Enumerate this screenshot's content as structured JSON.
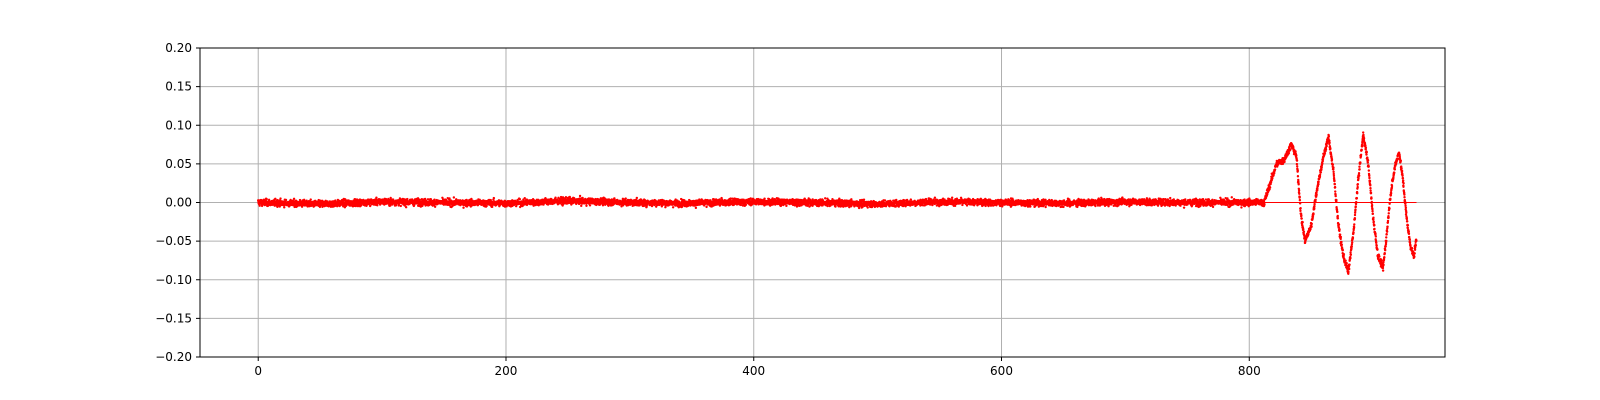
{
  "chart_data": {
    "type": "scatter",
    "title": "",
    "xlabel": "",
    "ylabel": "",
    "xlim": [
      -47,
      958
    ],
    "ylim": [
      -0.2,
      0.2
    ],
    "x_ticks": [
      0,
      200,
      400,
      600,
      800
    ],
    "x_tick_labels": [
      "0",
      "200",
      "400",
      "600",
      "800"
    ],
    "y_ticks": [
      -0.2,
      -0.15,
      -0.1,
      -0.05,
      0.0,
      0.05,
      0.1,
      0.15,
      0.2
    ],
    "y_tick_labels": [
      "−0.20",
      "−0.15",
      "−0.10",
      "−0.05",
      "0.00",
      "0.05",
      "0.10",
      "0.15",
      "0.20"
    ],
    "grid": true,
    "legend": "none",
    "colors": {
      "series": "#ff0000",
      "grid": "#b0b0b0",
      "axes": "#000000"
    },
    "series": [
      {
        "points": [
          [
            0,
            0.0
          ],
          [
            50,
            -0.002
          ],
          [
            100,
            0.001
          ],
          [
            150,
            0.0
          ],
          [
            200,
            -0.001
          ],
          [
            250,
            0.002
          ],
          [
            300,
            0.0
          ],
          [
            350,
            -0.001
          ],
          [
            400,
            0.001
          ],
          [
            450,
            0.0
          ],
          [
            500,
            -0.002
          ],
          [
            550,
            0.001
          ],
          [
            600,
            0.0
          ],
          [
            650,
            -0.001
          ],
          [
            700,
            0.001
          ],
          [
            750,
            0.0
          ],
          [
            800,
            0.0
          ],
          [
            812,
            0.0
          ],
          [
            818,
            0.03
          ],
          [
            822,
            0.05
          ],
          [
            828,
            0.055
          ],
          [
            834,
            0.075
          ],
          [
            838,
            0.06
          ],
          [
            842,
            -0.02
          ],
          [
            845,
            -0.05
          ],
          [
            850,
            -0.03
          ],
          [
            855,
            0.02
          ],
          [
            860,
            0.06
          ],
          [
            864,
            0.085
          ],
          [
            868,
            0.04
          ],
          [
            872,
            -0.03
          ],
          [
            876,
            -0.07
          ],
          [
            880,
            -0.09
          ],
          [
            884,
            -0.04
          ],
          [
            888,
            0.03
          ],
          [
            892,
            0.088
          ],
          [
            896,
            0.05
          ],
          [
            900,
            -0.02
          ],
          [
            904,
            -0.07
          ],
          [
            908,
            -0.085
          ],
          [
            911,
            -0.04
          ],
          [
            914,
            0.01
          ],
          [
            918,
            0.05
          ],
          [
            921,
            0.065
          ],
          [
            924,
            0.03
          ],
          [
            927,
            -0.02
          ],
          [
            930,
            -0.055
          ],
          [
            933,
            -0.07
          ],
          [
            935,
            -0.045
          ]
        ],
        "noise_band": 0.02
      }
    ]
  }
}
